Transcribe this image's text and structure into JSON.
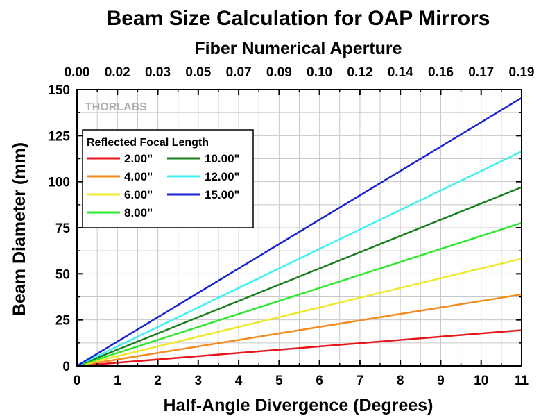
{
  "chart_data": {
    "type": "line",
    "title": "Beam Size Calculation for OAP Mirrors",
    "xlabel": "Half-Angle Divergence (Degrees)",
    "ylabel": "Beam Diameter (mm)",
    "x2label": "Fiber Numerical Aperture",
    "xlim": [
      0,
      11
    ],
    "ylim": [
      0,
      150
    ],
    "x_ticks": [
      "0",
      "1",
      "2",
      "3",
      "4",
      "5",
      "6",
      "7",
      "8",
      "9",
      "10",
      "11"
    ],
    "y_ticks": [
      "0",
      "25",
      "50",
      "75",
      "100",
      "125",
      "150"
    ],
    "x2_ticks": [
      "0.00",
      "0.02",
      "0.03",
      "0.05",
      "0.07",
      "0.09",
      "0.10",
      "0.12",
      "0.14",
      "0.16",
      "0.17",
      "0.19"
    ],
    "grid": true,
    "legend_title": "Reflected Focal Length",
    "legend_position": "top-left",
    "watermark": "THORLABS",
    "series": [
      {
        "name": "2.00\"",
        "color": "#e8161b",
        "x": [
          0,
          11
        ],
        "y": [
          0,
          19.4
        ]
      },
      {
        "name": "4.00\"",
        "color": "#f28a1e",
        "x": [
          0,
          11
        ],
        "y": [
          0,
          38.8
        ]
      },
      {
        "name": "6.00\"",
        "color": "#eee82a",
        "x": [
          0,
          11
        ],
        "y": [
          0,
          58.2
        ]
      },
      {
        "name": "8.00\"",
        "color": "#2ee82e",
        "x": [
          0,
          11
        ],
        "y": [
          0,
          77.6
        ]
      },
      {
        "name": "10.00\"",
        "color": "#1b7d1b",
        "x": [
          0,
          11
        ],
        "y": [
          0,
          97.0
        ]
      },
      {
        "name": "12.00\"",
        "color": "#3ff0f0",
        "x": [
          0,
          11
        ],
        "y": [
          0,
          116.4
        ]
      },
      {
        "name": "15.00\"",
        "color": "#1a22d6",
        "x": [
          0,
          11
        ],
        "y": [
          0,
          145.5
        ]
      }
    ]
  }
}
